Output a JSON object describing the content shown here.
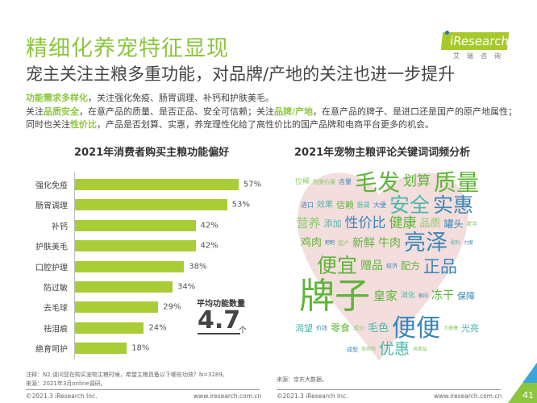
{
  "header": {
    "title": "精细化养宠特征显现",
    "subtitle": "宠主关注主粮多重功能，对品牌/产地的关注也进一步提升",
    "logo_text": "iResearch",
    "logo_cn": "艾瑞咨询"
  },
  "intro": {
    "line1_hl": "功能需求多样化",
    "line1_rest": "，关注强化免疫、肠胃调理、补钙和护肤美毛。",
    "line2_a": "关注",
    "line2_hl1": "品质安全",
    "line2_b": "，在意产品的质量、是否正品、安全可信赖；关注",
    "line2_hl2": "品牌/产地",
    "line2_c": "，在意产品的牌子、是进口还是国产的原产地属性；同时也关注",
    "line2_hl3": "性价比",
    "line2_d": "，产品是否划算、实惠，养宠理性化给了高性价比的国产品牌和电商平台更多的机会。"
  },
  "chart_data": {
    "type": "bar",
    "orientation": "horizontal",
    "title": "2021年消费者购买主粮功能偏好",
    "categories": [
      "强化免疫",
      "肠胃调理",
      "补钙",
      "护肤美毛",
      "口腔护理",
      "防过敏",
      "去毛球",
      "祛泪痕",
      "绝育呵护"
    ],
    "values": [
      57,
      53,
      42,
      42,
      38,
      34,
      29,
      24,
      18
    ],
    "labels": [
      "57%",
      "53%",
      "42%",
      "42%",
      "38%",
      "34%",
      "29%",
      "24%",
      "18%"
    ],
    "unit": "%",
    "color": "#a9cd36"
  },
  "average": {
    "label": "平均功能数量",
    "value": "4.7",
    "unit": "个"
  },
  "wordcloud": {
    "title": "2021年宠物主粮评论关键词词频分析",
    "words": [
      "拉稀",
      "物美价廉",
      "含量",
      "毛发",
      "划算",
      "质量",
      "进口",
      "效果",
      "信赖",
      "肠胃",
      "大便",
      "安全",
      "实惠",
      "营养",
      "添加",
      "性价比",
      "健康",
      "品质",
      "罐头",
      "老年",
      "鸡肉",
      "粑粑",
      "国产",
      "新鲜",
      "牛肉",
      "亮泽",
      "配料",
      "力度",
      "便宜",
      "赠品",
      "经济",
      "配方",
      "正品",
      "牌子",
      "皇家",
      "消化",
      "郁闷",
      "冻干",
      "保障",
      "渴望",
      "价钱",
      "零食",
      "成分",
      "毛色",
      "便便",
      "大健康",
      "光亮",
      "成型",
      "保质期",
      "优惠",
      "表面盐"
    ]
  },
  "footer": {
    "note_left": "注释：N2.请问您在购买宠物主粮时候，希望主粮具备以下哪些功效？N=3289。",
    "source_left": "来源：2021年3月online调研。",
    "source_right": "来源：京东大数据。",
    "copyright_left": "©2021.3 iResearch Inc.",
    "url_left": "www.iresearch.com.cn",
    "copyright_right": "©2021.3 iResearch Inc.",
    "url_right": "www.iresearch.com.cn",
    "page": "41"
  },
  "colors": {
    "accent": "#8cc63f",
    "bar": "#a9cd36",
    "heart": "#f3dddd"
  }
}
